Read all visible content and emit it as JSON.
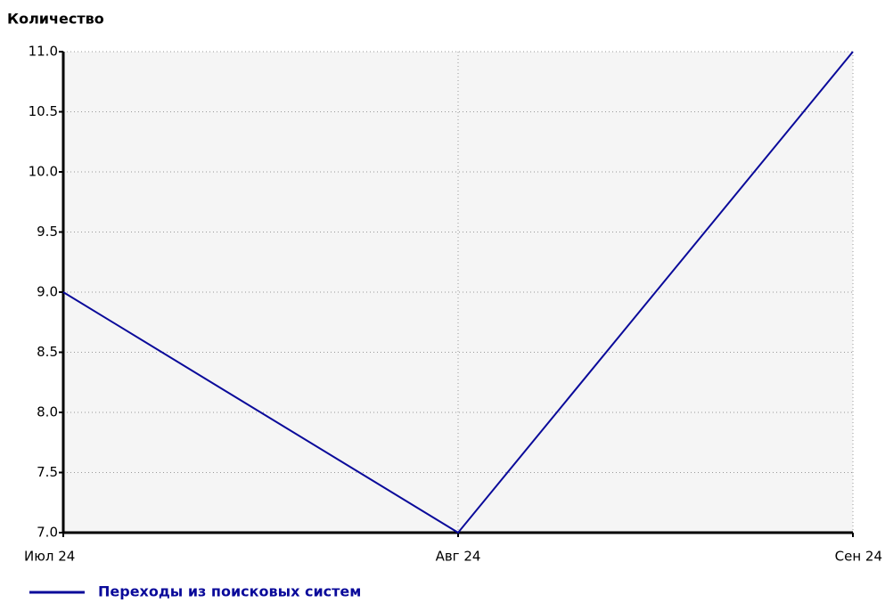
{
  "chart_data": {
    "type": "line",
    "y_axis_label": "Количество",
    "categories": [
      "Июл 24",
      "Авг 24",
      "Сен 24"
    ],
    "series": [
      {
        "name": "Переходы из поисковых систем",
        "color": "#0a0a9a",
        "values": [
          9,
          7,
          11
        ]
      }
    ],
    "ylim": [
      7,
      11
    ],
    "yticks": [
      {
        "value": 7,
        "label": "7.0"
      },
      7.5,
      {
        "value": 8,
        "label": "8.0"
      },
      8.5,
      {
        "value": 9,
        "label": "9.0"
      },
      9.5,
      {
        "value": 10,
        "label": "10.0"
      },
      10.5,
      {
        "value": 11,
        "label": "11.0"
      }
    ],
    "grid": true,
    "legend": "bottom-left"
  }
}
